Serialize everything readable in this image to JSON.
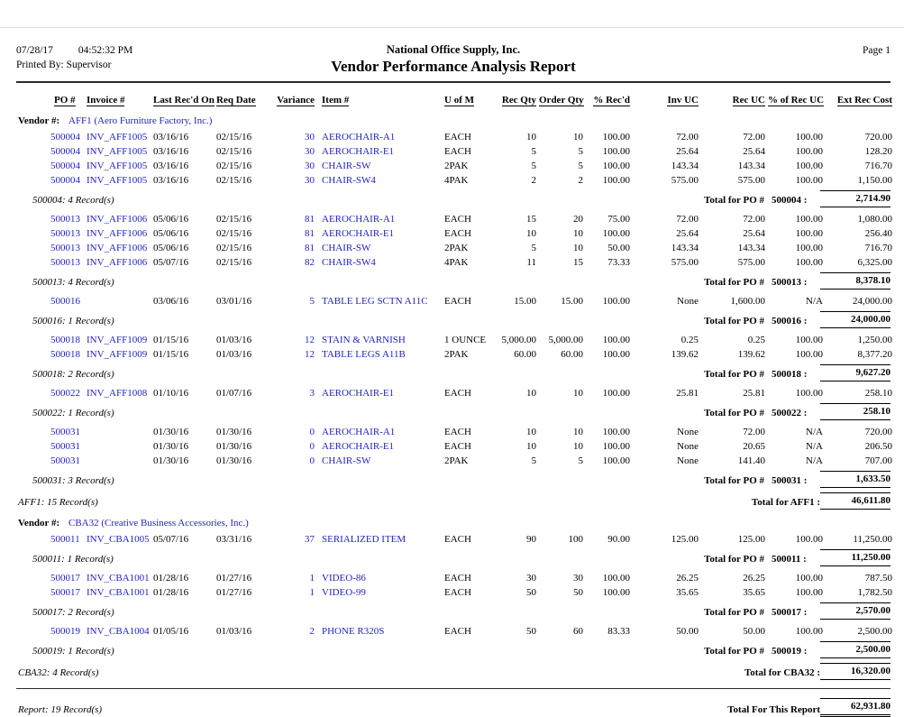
{
  "header": {
    "date": "07/28/17",
    "time": "04:52:32 PM",
    "printed_by": "Printed By: Supervisor",
    "company": "National Office Supply, Inc.",
    "title": "Vendor Performance Analysis Report",
    "page": "Page 1"
  },
  "columns": [
    "PO #",
    "Invoice #",
    "Last Rec'd On",
    "Req Date",
    "Variance",
    "Item #",
    "U of M",
    "Rec Qty",
    "Order Qty",
    "% Rec'd",
    "Inv UC",
    "Rec UC",
    "% of Rec UC",
    "Ext Rec Cost"
  ],
  "colors": {
    "text": "#000000",
    "link_blue": "#2323c0",
    "background": "#ffffff"
  },
  "rows": [
    {
      "type": "vendor",
      "prefix": "Vendor #:",
      "name": "AFF1 (Aero Furniture Factory, Inc.)"
    },
    {
      "type": "detail",
      "po": "500004",
      "invoice": "INV_AFF1005",
      "recd": "03/16/16",
      "req": "02/15/16",
      "var": "30",
      "item": "AEROCHAIR-A1",
      "uom": "EACH",
      "rec_qty": "10",
      "order_qty": "10",
      "pct": "100.00",
      "inv_uc": "72.00",
      "rec_uc": "72.00",
      "pct_uc": "100.00",
      "ext": "720.00"
    },
    {
      "type": "detail",
      "po": "500004",
      "invoice": "INV_AFF1005",
      "recd": "03/16/16",
      "req": "02/15/16",
      "var": "30",
      "item": "AEROCHAIR-E1",
      "uom": "EACH",
      "rec_qty": "5",
      "order_qty": "5",
      "pct": "100.00",
      "inv_uc": "25.64",
      "rec_uc": "25.64",
      "pct_uc": "100.00",
      "ext": "128.20"
    },
    {
      "type": "detail",
      "po": "500004",
      "invoice": "INV_AFF1005",
      "recd": "03/16/16",
      "req": "02/15/16",
      "var": "30",
      "item": "CHAIR-SW",
      "uom": "2PAK",
      "rec_qty": "5",
      "order_qty": "5",
      "pct": "100.00",
      "inv_uc": "143.34",
      "rec_uc": "143.34",
      "pct_uc": "100.00",
      "ext": "716.70"
    },
    {
      "type": "detail",
      "po": "500004",
      "invoice": "INV_AFF1005",
      "recd": "03/16/16",
      "req": "02/15/16",
      "var": "30",
      "item": "CHAIR-SW4",
      "uom": "4PAK",
      "rec_qty": "2",
      "order_qty": "2",
      "pct": "100.00",
      "inv_uc": "575.00",
      "rec_uc": "575.00",
      "pct_uc": "100.00",
      "ext": "1,150.00"
    },
    {
      "type": "po_total",
      "records": "500004: 4 Record(s)",
      "label": "Total for PO #",
      "po": "500004 :",
      "amount": "2,714.90"
    },
    {
      "type": "detail",
      "po": "500013",
      "invoice": "INV_AFF1006",
      "recd": "05/06/16",
      "req": "02/15/16",
      "var": "81",
      "item": "AEROCHAIR-A1",
      "uom": "EACH",
      "rec_qty": "15",
      "order_qty": "20",
      "pct": "75.00",
      "inv_uc": "72.00",
      "rec_uc": "72.00",
      "pct_uc": "100.00",
      "ext": "1,080.00"
    },
    {
      "type": "detail",
      "po": "500013",
      "invoice": "INV_AFF1006",
      "recd": "05/06/16",
      "req": "02/15/16",
      "var": "81",
      "item": "AEROCHAIR-E1",
      "uom": "EACH",
      "rec_qty": "10",
      "order_qty": "10",
      "pct": "100.00",
      "inv_uc": "25.64",
      "rec_uc": "25.64",
      "pct_uc": "100.00",
      "ext": "256.40"
    },
    {
      "type": "detail",
      "po": "500013",
      "invoice": "INV_AFF1006",
      "recd": "05/06/16",
      "req": "02/15/16",
      "var": "81",
      "item": "CHAIR-SW",
      "uom": "2PAK",
      "rec_qty": "5",
      "order_qty": "10",
      "pct": "50.00",
      "inv_uc": "143.34",
      "rec_uc": "143.34",
      "pct_uc": "100.00",
      "ext": "716.70"
    },
    {
      "type": "detail",
      "po": "500013",
      "invoice": "INV_AFF1006",
      "recd": "05/07/16",
      "req": "02/15/16",
      "var": "82",
      "item": "CHAIR-SW4",
      "uom": "4PAK",
      "rec_qty": "11",
      "order_qty": "15",
      "pct": "73.33",
      "inv_uc": "575.00",
      "rec_uc": "575.00",
      "pct_uc": "100.00",
      "ext": "6,325.00"
    },
    {
      "type": "po_total",
      "records": "500013: 4 Record(s)",
      "label": "Total for PO #",
      "po": "500013 :",
      "amount": "8,378.10"
    },
    {
      "type": "detail",
      "po": "500016",
      "invoice": "",
      "recd": "03/06/16",
      "req": "03/01/16",
      "var": "5",
      "item": "TABLE LEG SCTN A11C",
      "uom": "EACH",
      "rec_qty": "15.00",
      "order_qty": "15.00",
      "pct": "100.00",
      "inv_uc": "None",
      "rec_uc": "1,600.00",
      "pct_uc": "N/A",
      "ext": "24,000.00"
    },
    {
      "type": "po_total",
      "records": "500016: 1 Record(s)",
      "label": "Total for PO #",
      "po": "500016 :",
      "amount": "24,000.00"
    },
    {
      "type": "detail",
      "po": "500018",
      "invoice": "INV_AFF1009",
      "recd": "01/15/16",
      "req": "01/03/16",
      "var": "12",
      "item": "STAIN & VARNISH",
      "uom": "1 OUNCE",
      "rec_qty": "5,000.00",
      "order_qty": "5,000.00",
      "pct": "100.00",
      "inv_uc": "0.25",
      "rec_uc": "0.25",
      "pct_uc": "100.00",
      "ext": "1,250.00"
    },
    {
      "type": "detail",
      "po": "500018",
      "invoice": "INV_AFF1009",
      "recd": "01/15/16",
      "req": "01/03/16",
      "var": "12",
      "item": "TABLE LEGS A11B",
      "uom": "2PAK",
      "rec_qty": "60.00",
      "order_qty": "60.00",
      "pct": "100.00",
      "inv_uc": "139.62",
      "rec_uc": "139.62",
      "pct_uc": "100.00",
      "ext": "8,377.20"
    },
    {
      "type": "po_total",
      "records": "500018: 2 Record(s)",
      "label": "Total for PO #",
      "po": "500018 :",
      "amount": "9,627.20"
    },
    {
      "type": "detail",
      "po": "500022",
      "invoice": "INV_AFF1008",
      "recd": "01/10/16",
      "req": "01/07/16",
      "var": "3",
      "item": "AEROCHAIR-E1",
      "uom": "EACH",
      "rec_qty": "10",
      "order_qty": "10",
      "pct": "100.00",
      "inv_uc": "25.81",
      "rec_uc": "25.81",
      "pct_uc": "100.00",
      "ext": "258.10"
    },
    {
      "type": "po_total",
      "records": "500022: 1 Record(s)",
      "label": "Total for PO #",
      "po": "500022 :",
      "amount": "258.10"
    },
    {
      "type": "detail",
      "po": "500031",
      "invoice": "",
      "recd": "01/30/16",
      "req": "01/30/16",
      "var": "0",
      "item": "AEROCHAIR-A1",
      "uom": "EACH",
      "rec_qty": "10",
      "order_qty": "10",
      "pct": "100.00",
      "inv_uc": "None",
      "rec_uc": "72.00",
      "pct_uc": "N/A",
      "ext": "720.00"
    },
    {
      "type": "detail",
      "po": "500031",
      "invoice": "",
      "recd": "01/30/16",
      "req": "01/30/16",
      "var": "0",
      "item": "AEROCHAIR-E1",
      "uom": "EACH",
      "rec_qty": "10",
      "order_qty": "10",
      "pct": "100.00",
      "inv_uc": "None",
      "rec_uc": "20.65",
      "pct_uc": "N/A",
      "ext": "206.50"
    },
    {
      "type": "detail",
      "po": "500031",
      "invoice": "",
      "recd": "01/30/16",
      "req": "01/30/16",
      "var": "0",
      "item": "CHAIR-SW",
      "uom": "2PAK",
      "rec_qty": "5",
      "order_qty": "5",
      "pct": "100.00",
      "inv_uc": "None",
      "rec_uc": "141.40",
      "pct_uc": "N/A",
      "ext": "707.00"
    },
    {
      "type": "po_total",
      "records": "500031: 3 Record(s)",
      "label": "Total for PO #",
      "po": "500031 :",
      "amount": "1,633.50"
    },
    {
      "type": "vendor_total",
      "records": "AFF1: 15 Record(s)",
      "label": "Total for AFF1 :",
      "amount": "46,611.80"
    },
    {
      "type": "vendor",
      "prefix": "Vendor #:",
      "name": "CBA32 (Creative Business Accessories, Inc.)"
    },
    {
      "type": "detail",
      "po": "500011",
      "invoice": "INV_CBA1005",
      "recd": "05/07/16",
      "req": "03/31/16",
      "var": "37",
      "item": "SERIALIZED ITEM",
      "uom": "EACH",
      "rec_qty": "90",
      "order_qty": "100",
      "pct": "90.00",
      "inv_uc": "125.00",
      "rec_uc": "125.00",
      "pct_uc": "100.00",
      "ext": "11,250.00"
    },
    {
      "type": "po_total",
      "records": "500011: 1 Record(s)",
      "label": "Total for PO #",
      "po": "500011 :",
      "amount": "11,250.00"
    },
    {
      "type": "detail",
      "po": "500017",
      "invoice": "INV_CBA1001",
      "recd": "01/28/16",
      "req": "01/27/16",
      "var": "1",
      "item": "VIDEO-86",
      "uom": "EACH",
      "rec_qty": "30",
      "order_qty": "30",
      "pct": "100.00",
      "inv_uc": "26.25",
      "rec_uc": "26.25",
      "pct_uc": "100.00",
      "ext": "787.50"
    },
    {
      "type": "detail",
      "po": "500017",
      "invoice": "INV_CBA1001",
      "recd": "01/28/16",
      "req": "01/27/16",
      "var": "1",
      "item": "VIDEO-99",
      "uom": "EACH",
      "rec_qty": "50",
      "order_qty": "50",
      "pct": "100.00",
      "inv_uc": "35.65",
      "rec_uc": "35.65",
      "pct_uc": "100.00",
      "ext": "1,782.50"
    },
    {
      "type": "po_total",
      "records": "500017: 2 Record(s)",
      "label": "Total for PO #",
      "po": "500017 :",
      "amount": "2,570.00"
    },
    {
      "type": "detail",
      "po": "500019",
      "invoice": "INV_CBA1004",
      "recd": "01/05/16",
      "req": "01/03/16",
      "var": "2",
      "item": "PHONE R320S",
      "uom": "EACH",
      "rec_qty": "50",
      "order_qty": "60",
      "pct": "83.33",
      "inv_uc": "50.00",
      "rec_uc": "50.00",
      "pct_uc": "100.00",
      "ext": "2,500.00"
    },
    {
      "type": "po_total",
      "records": "500019: 1 Record(s)",
      "label": "Total for PO #",
      "po": "500019 :",
      "amount": "2,500.00"
    },
    {
      "type": "vendor_total",
      "records": "CBA32: 4 Record(s)",
      "label": "Total for CBA32 :",
      "amount": "16,320.00"
    }
  ],
  "footer": {
    "records": "Report: 19 Record(s)",
    "label": "Total For This Report",
    "amount": "62,931.80"
  }
}
